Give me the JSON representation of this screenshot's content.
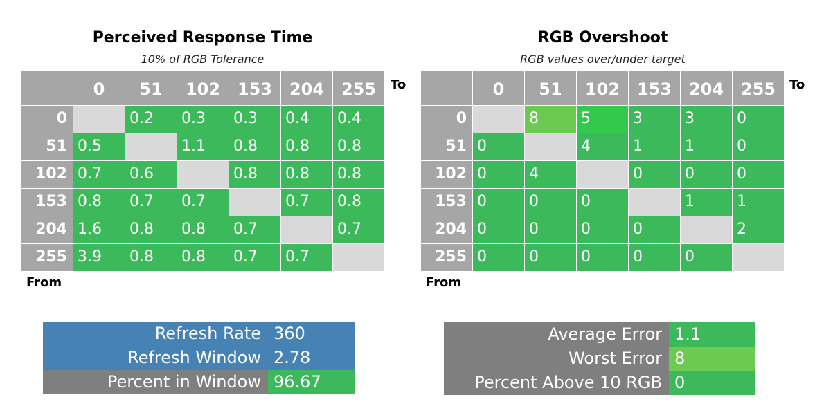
{
  "colors": {
    "green": "#3cb95a",
    "light_green": "#6bca4f",
    "bright_green": "#33c94c",
    "diag_gray": "#d9d9d9",
    "header_gray": "#a6a6a6",
    "blue": "#4682b4",
    "dark_gray": "#7f7f7f"
  },
  "chart_data": [
    {
      "type": "table",
      "title": "Perceived Response Time",
      "subtitle": "10% of RGB Tolerance",
      "to_label": "To",
      "from_label": "From",
      "columns": [
        "0",
        "51",
        "102",
        "153",
        "204",
        "255"
      ],
      "rows": [
        "0",
        "51",
        "102",
        "153",
        "204",
        "255"
      ],
      "values": [
        [
          "",
          "0.2",
          "0.3",
          "0.3",
          "0.4",
          "0.4"
        ],
        [
          "0.5",
          "",
          "1.1",
          "0.8",
          "0.8",
          "0.8"
        ],
        [
          "0.7",
          "0.6",
          "",
          "0.8",
          "0.8",
          "0.8"
        ],
        [
          "0.8",
          "0.7",
          "0.7",
          "",
          "0.7",
          "0.8"
        ],
        [
          "1.6",
          "0.8",
          "0.8",
          "0.7",
          "",
          "0.7"
        ],
        [
          "3.9",
          "0.8",
          "0.8",
          "0.7",
          "0.7",
          ""
        ]
      ]
    },
    {
      "type": "table",
      "title": "RGB Overshoot",
      "subtitle": "RGB values over/under target",
      "to_label": "To",
      "from_label": "From",
      "columns": [
        "0",
        "51",
        "102",
        "153",
        "204",
        "255"
      ],
      "rows": [
        "0",
        "51",
        "102",
        "153",
        "204",
        "255"
      ],
      "values": [
        [
          "",
          "8",
          "5",
          "3",
          "3",
          "0"
        ],
        [
          "0",
          "",
          "4",
          "1",
          "1",
          "0"
        ],
        [
          "0",
          "4",
          "",
          "0",
          "0",
          "0"
        ],
        [
          "0",
          "0",
          "0",
          "",
          "1",
          "1"
        ],
        [
          "0",
          "0",
          "0",
          "0",
          "",
          "2"
        ],
        [
          "0",
          "0",
          "0",
          "0",
          "0",
          ""
        ]
      ],
      "highlight": {
        "0,1": "light_green",
        "0,2": "bright_green"
      }
    }
  ],
  "left_stats": [
    {
      "label": "Refresh Rate",
      "value": "360",
      "label_color": "blue",
      "value_color": "blue"
    },
    {
      "label": "Refresh Window",
      "value": "2.78",
      "label_color": "blue",
      "value_color": "blue"
    },
    {
      "label": "Percent in Window",
      "value": "96.67",
      "label_color": "dark_gray",
      "value_color": "green"
    }
  ],
  "right_stats": [
    {
      "label": "Average Error",
      "value": "1.1",
      "label_color": "dark_gray",
      "value_color": "green"
    },
    {
      "label": "Worst Error",
      "value": "8",
      "label_color": "dark_gray",
      "value_color": "light_green"
    },
    {
      "label": "Percent Above 10 RGB",
      "value": "0",
      "label_color": "dark_gray",
      "value_color": "green"
    }
  ]
}
